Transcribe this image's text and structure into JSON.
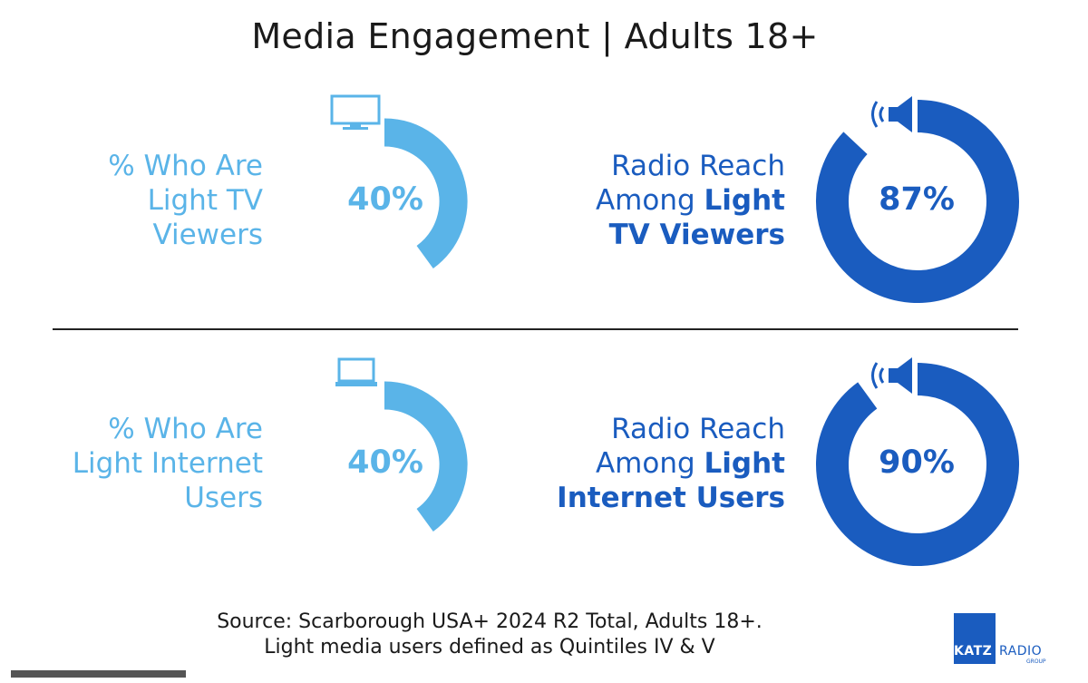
{
  "title": "Media Engagement | Adults 18+",
  "colors": {
    "light_blue": "#5ab4e8",
    "dark_blue": "#1a5cbf",
    "text": "#1a1a1a"
  },
  "chart_data": [
    {
      "type": "donut",
      "label_lines": [
        "% Who Are",
        "Light TV",
        "Viewers"
      ],
      "value": 40,
      "value_label": "40%",
      "icon": "tv-icon",
      "color": "#5ab4e8"
    },
    {
      "type": "donut",
      "label_lines": [
        {
          "plain": "Radio Reach",
          "bold": ""
        },
        {
          "plain": "Among ",
          "bold": "Light"
        },
        {
          "plain": "",
          "bold": "TV Viewers"
        }
      ],
      "value": 87,
      "value_label": "87%",
      "icon": "speaker-icon",
      "color": "#1a5cbf"
    },
    {
      "type": "donut",
      "label_lines": [
        "% Who Are",
        "Light Internet",
        "Users"
      ],
      "value": 40,
      "value_label": "40%",
      "icon": "laptop-icon",
      "color": "#5ab4e8"
    },
    {
      "type": "donut",
      "label_lines": [
        {
          "plain": "Radio Reach",
          "bold": ""
        },
        {
          "plain": "Among ",
          "bold": "Light"
        },
        {
          "plain": "",
          "bold": "Internet Users"
        }
      ],
      "value": 90,
      "value_label": "90%",
      "icon": "speaker-icon",
      "color": "#1a5cbf"
    }
  ],
  "source": {
    "line1": "Source: Scarborough USA+ 2024 R2 Total, Adults 18+.",
    "line2": "Light media users defined as Quintiles IV & V"
  },
  "logo": {
    "katz": "KATZ",
    "radio": "RADIO",
    "group": "GROUP"
  }
}
